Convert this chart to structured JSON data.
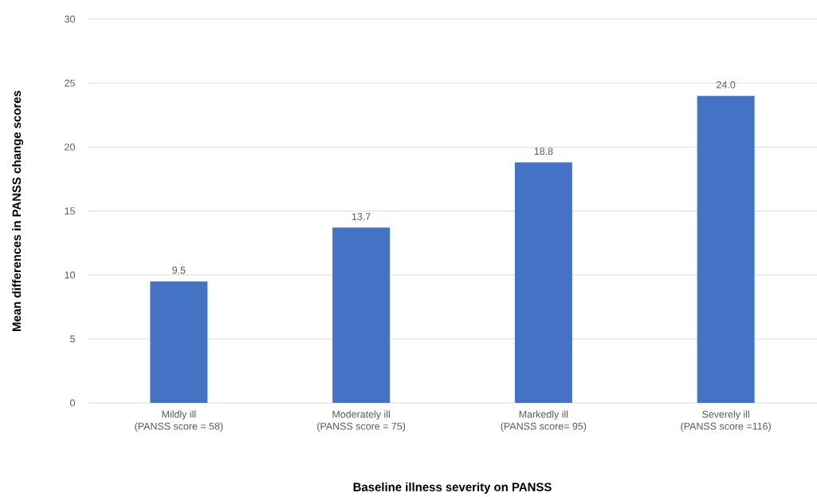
{
  "chart_data": {
    "type": "bar",
    "xlabel": "Baseline illness severity on PANSS",
    "ylabel": "Mean differences in PANSS change scores",
    "categories": [
      "Mildly ill\n(PANSS score = 58)",
      "Moderately ill\n(PANSS score = 75)",
      "Markedly ill\n(PANSS score= 95)",
      "Severely ill\n(PANSS score =116)"
    ],
    "values": [
      9.5,
      13.7,
      18.8,
      24.0
    ],
    "value_labels": [
      "9.5",
      "13.7",
      "18.8",
      "24.0"
    ],
    "color": "#4472c4",
    "ylim": [
      0,
      30
    ],
    "yticks": [
      0,
      5,
      10,
      15,
      20,
      25,
      30
    ],
    "grid": "y"
  }
}
